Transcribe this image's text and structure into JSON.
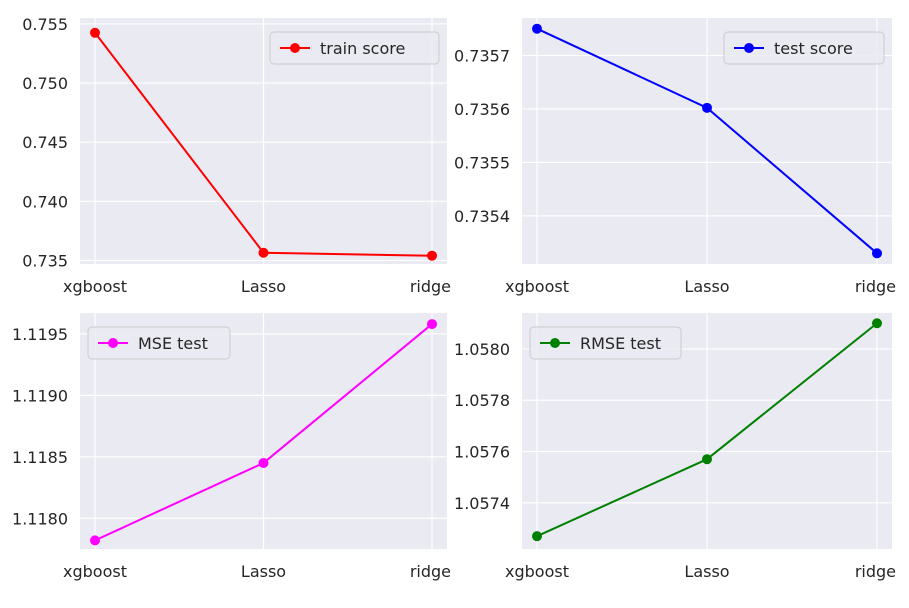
{
  "chart_data": [
    {
      "type": "line",
      "categories": [
        "xgboost",
        "Lasso",
        "ridge"
      ],
      "series": [
        {
          "name": "train score",
          "values": [
            0.75425,
            0.73565,
            0.7354
          ]
        }
      ],
      "ylim": [
        0.7347,
        0.7555
      ],
      "yticks": [
        0.735,
        0.74,
        0.745,
        0.75,
        0.755
      ],
      "ytick_labels": [
        "0.735",
        "0.740",
        "0.745",
        "0.750",
        "0.755"
      ],
      "color": "#ff0000",
      "legend": "top-right",
      "grid": true
    },
    {
      "type": "line",
      "categories": [
        "xgboost",
        "Lasso",
        "ridge"
      ],
      "series": [
        {
          "name": "test score",
          "values": [
            0.73575,
            0.735602,
            0.73533
          ]
        }
      ],
      "ylim": [
        0.73531,
        0.73577
      ],
      "yticks": [
        0.7354,
        0.7355,
        0.7356,
        0.7357
      ],
      "ytick_labels": [
        "0.7354",
        "0.7355",
        "0.7356",
        "0.7357"
      ],
      "color": "#0000ff",
      "legend": "top-right",
      "grid": true
    },
    {
      "type": "line",
      "categories": [
        "xgboost",
        "Lasso",
        "ridge"
      ],
      "series": [
        {
          "name": "MSE test",
          "values": [
            1.11782,
            1.11845,
            1.11958
          ]
        }
      ],
      "ylim": [
        1.11775,
        1.11967
      ],
      "yticks": [
        1.118,
        1.1185,
        1.119,
        1.1195
      ],
      "ytick_labels": [
        "1.1180",
        "1.1185",
        "1.1190",
        "1.1195"
      ],
      "color": "#ff00ff",
      "legend": "top-left",
      "grid": true
    },
    {
      "type": "line",
      "categories": [
        "xgboost",
        "Lasso",
        "ridge"
      ],
      "series": [
        {
          "name": "RMSE test",
          "values": [
            1.05727,
            1.05757,
            1.0581
          ]
        }
      ],
      "ylim": [
        1.05722,
        1.05814
      ],
      "yticks": [
        1.0574,
        1.0576,
        1.0578,
        1.058
      ],
      "ytick_labels": [
        "1.0574",
        "1.0576",
        "1.0578",
        "1.0580"
      ],
      "color": "#008000",
      "legend": "top-left",
      "grid": true
    }
  ]
}
